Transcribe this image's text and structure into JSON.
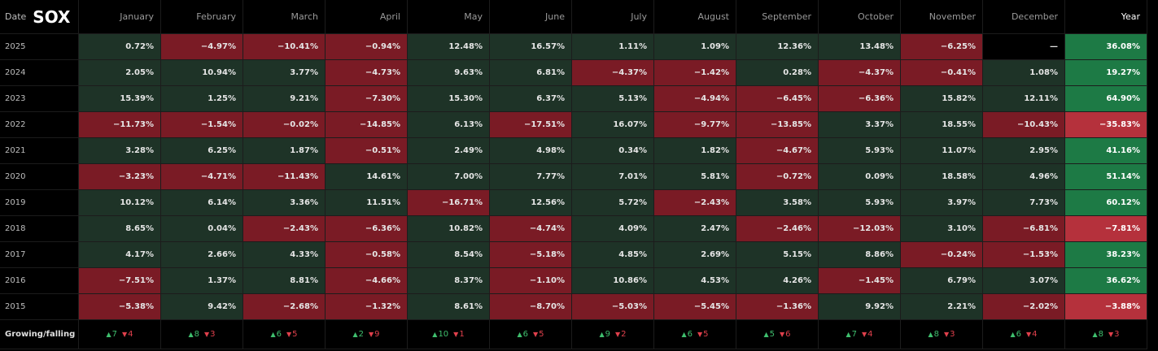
{
  "header": {
    "title": "SOX",
    "date_label": "Date",
    "columns": [
      "January",
      "February",
      "March",
      "April",
      "May",
      "June",
      "July",
      "August",
      "September",
      "October",
      "November",
      "December",
      "Year"
    ]
  },
  "rows": [
    {
      "year": "2025",
      "cells": [
        "0.72%",
        "−4.97%",
        "−10.41%",
        "−0.94%",
        "12.48%",
        "16.57%",
        "1.11%",
        "1.09%",
        "12.36%",
        "13.48%",
        "−6.25%",
        "—",
        "36.08%"
      ]
    },
    {
      "year": "2024",
      "cells": [
        "2.05%",
        "10.94%",
        "3.77%",
        "−4.73%",
        "9.63%",
        "6.81%",
        "−4.37%",
        "−1.42%",
        "0.28%",
        "−4.37%",
        "−0.41%",
        "1.08%",
        "19.27%"
      ]
    },
    {
      "year": "2023",
      "cells": [
        "15.39%",
        "1.25%",
        "9.21%",
        "−7.30%",
        "15.30%",
        "6.37%",
        "5.13%",
        "−4.94%",
        "−6.45%",
        "−6.36%",
        "15.82%",
        "12.11%",
        "64.90%"
      ]
    },
    {
      "year": "2022",
      "cells": [
        "−11.73%",
        "−1.54%",
        "−0.02%",
        "−14.85%",
        "6.13%",
        "−17.51%",
        "16.07%",
        "−9.77%",
        "−13.85%",
        "3.37%",
        "18.55%",
        "−10.43%",
        "−35.83%"
      ]
    },
    {
      "year": "2021",
      "cells": [
        "3.28%",
        "6.25%",
        "1.87%",
        "−0.51%",
        "2.49%",
        "4.98%",
        "0.34%",
        "1.82%",
        "−4.67%",
        "5.93%",
        "11.07%",
        "2.95%",
        "41.16%"
      ]
    },
    {
      "year": "2020",
      "cells": [
        "−3.23%",
        "−4.71%",
        "−11.43%",
        "14.61%",
        "7.00%",
        "7.77%",
        "7.01%",
        "5.81%",
        "−0.72%",
        "0.09%",
        "18.58%",
        "4.96%",
        "51.14%"
      ]
    },
    {
      "year": "2019",
      "cells": [
        "10.12%",
        "6.14%",
        "3.36%",
        "11.51%",
        "−16.71%",
        "12.56%",
        "5.72%",
        "−2.43%",
        "3.58%",
        "5.93%",
        "3.97%",
        "7.73%",
        "60.12%"
      ]
    },
    {
      "year": "2018",
      "cells": [
        "8.65%",
        "0.04%",
        "−2.43%",
        "−6.36%",
        "10.82%",
        "−4.74%",
        "4.09%",
        "2.47%",
        "−2.46%",
        "−12.03%",
        "3.10%",
        "−6.81%",
        "−7.81%"
      ]
    },
    {
      "year": "2017",
      "cells": [
        "4.17%",
        "2.66%",
        "4.33%",
        "−0.58%",
        "8.54%",
        "−5.18%",
        "4.85%",
        "2.69%",
        "5.15%",
        "8.86%",
        "−0.24%",
        "−1.53%",
        "38.23%"
      ]
    },
    {
      "year": "2016",
      "cells": [
        "−7.51%",
        "1.37%",
        "8.81%",
        "−4.66%",
        "8.37%",
        "−1.10%",
        "10.86%",
        "4.53%",
        "4.26%",
        "−1.45%",
        "6.79%",
        "3.07%",
        "36.62%"
      ]
    },
    {
      "year": "2015",
      "cells": [
        "−5.38%",
        "9.42%",
        "−2.68%",
        "−1.32%",
        "8.61%",
        "−8.70%",
        "−5.03%",
        "−5.45%",
        "−1.36%",
        "9.92%",
        "2.21%",
        "−2.02%",
        "−3.88%"
      ]
    }
  ],
  "footer": {
    "label": "Growing/falling",
    "counts": [
      {
        "up": 7,
        "down": 4
      },
      {
        "up": 8,
        "down": 3
      },
      {
        "up": 6,
        "down": 5
      },
      {
        "up": 2,
        "down": 9
      },
      {
        "up": 10,
        "down": 1
      },
      {
        "up": 6,
        "down": 5
      },
      {
        "up": 9,
        "down": 2
      },
      {
        "up": 6,
        "down": 5
      },
      {
        "up": 5,
        "down": 6
      },
      {
        "up": 7,
        "down": 4
      },
      {
        "up": 8,
        "down": 3
      },
      {
        "up": 6,
        "down": 4
      },
      {
        "up": 8,
        "down": 3
      }
    ]
  }
}
